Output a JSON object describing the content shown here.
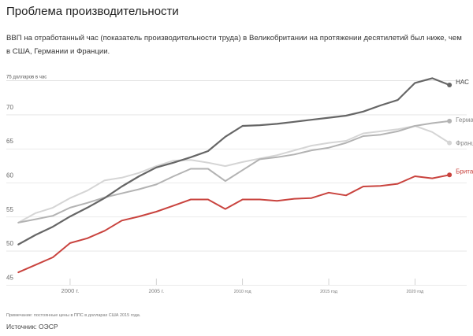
{
  "title": "Проблема производительности",
  "subtitle": "ВВП на отработанный час (показатель производительности труда) в Великобритании на протяжении десятилетий был ниже, чем в США, Германии и Франции.",
  "note": "Примечание: постоянные цены в ППС в долларах США 2015 года.",
  "source": "Источник: ОЭСР",
  "chart_data": {
    "type": "line",
    "unit_label": "75 долларов в час",
    "y_ticks": [
      "70",
      "65",
      "60",
      "55",
      "50",
      "45"
    ],
    "x_ticks": [
      "2000 г.",
      "2005 г.",
      "2010 год",
      "2015 год",
      "2020 год"
    ],
    "ylim": [
      44,
      76
    ],
    "xlim": [
      1996.3,
      2023
    ],
    "grid": true,
    "x": [
      1997,
      1998,
      1999,
      2000,
      2001,
      2002,
      2003,
      2004,
      2005,
      2006,
      2007,
      2008,
      2009,
      2010,
      2011,
      2012,
      2013,
      2014,
      2015,
      2016,
      2017,
      2018,
      2019,
      2020,
      2021,
      2022
    ],
    "series": [
      {
        "name": "НАС",
        "color": "#666666",
        "values": [
          50.4,
          51.8,
          53.0,
          54.5,
          55.8,
          57.2,
          58.9,
          60.4,
          61.7,
          62.4,
          63.2,
          64.1,
          66.2,
          67.8,
          67.9,
          68.1,
          68.4,
          68.7,
          69.0,
          69.3,
          69.9,
          70.8,
          71.6,
          74.1,
          74.8,
          73.8
        ],
        "label_color": "#444444"
      },
      {
        "name": "Германия",
        "color": "#b3b3b3",
        "values": [
          53.6,
          54.1,
          54.6,
          55.8,
          56.5,
          57.3,
          57.9,
          58.5,
          59.2,
          60.4,
          61.5,
          61.5,
          59.7,
          61.3,
          62.9,
          63.2,
          63.6,
          64.2,
          64.6,
          65.3,
          66.3,
          66.5,
          67.0,
          67.8,
          68.2,
          68.5
        ],
        "label_color": "#888888"
      },
      {
        "name": "Франция",
        "color": "#d5d5d5",
        "values": [
          53.6,
          55.0,
          55.8,
          57.2,
          58.3,
          59.8,
          60.2,
          60.9,
          61.9,
          62.7,
          62.8,
          62.4,
          61.9,
          62.5,
          63.0,
          63.5,
          64.2,
          64.9,
          65.3,
          65.6,
          66.7,
          67.0,
          67.3,
          67.8,
          66.9,
          65.3
        ],
        "label_color": "#888888"
      },
      {
        "name": "Британия",
        "color": "#c9433e",
        "values": [
          46.3,
          47.4,
          48.5,
          50.6,
          51.3,
          52.4,
          53.9,
          54.5,
          55.2,
          56.1,
          57.0,
          57.0,
          55.6,
          57.0,
          57.0,
          56.8,
          57.1,
          57.2,
          58.0,
          57.6,
          58.9,
          59.0,
          59.3,
          60.4,
          60.1,
          60.6
        ],
        "label_color": "#c9433e"
      }
    ]
  }
}
